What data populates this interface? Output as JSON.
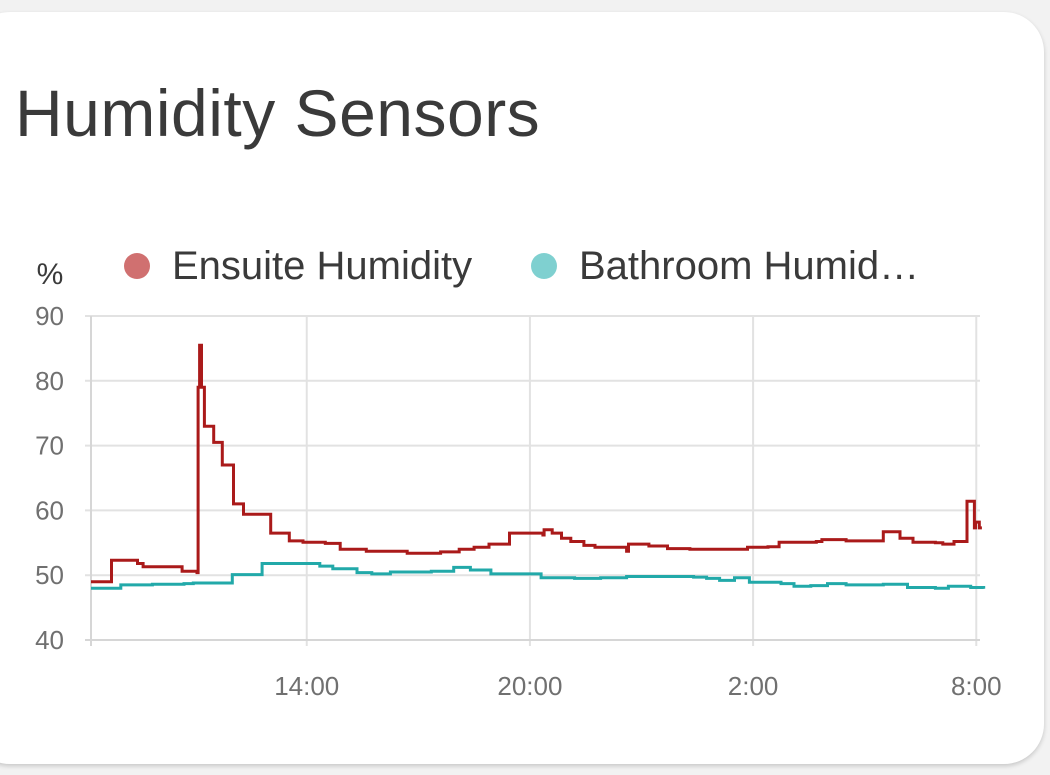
{
  "card": {
    "title": "Humidity Sensors"
  },
  "chart_data": {
    "type": "line",
    "title": "Humidity Sensors",
    "ylabel": "%",
    "ylim": [
      40,
      90
    ],
    "yticks": [
      "40",
      "50",
      "60",
      "70",
      "80",
      "90"
    ],
    "xlim": [
      8.2,
      32.1
    ],
    "xticks": [
      {
        "value": 14,
        "label": "14:00"
      },
      {
        "value": 20,
        "label": "20:00"
      },
      {
        "value": 26,
        "label": "2:00"
      },
      {
        "value": 32,
        "label": "8:00"
      }
    ],
    "grid": true,
    "legend_position": "top",
    "series": [
      {
        "name": "Ensuite Humidity",
        "legend_label": "Ensuite Humidity",
        "color": "#aa1a1a",
        "legend_color": "#d07070",
        "step": true,
        "points": [
          [
            8.2,
            49
          ],
          [
            8.75,
            52.3
          ],
          [
            9.45,
            51.8
          ],
          [
            9.6,
            51.3
          ],
          [
            10.65,
            50.6
          ],
          [
            11.05,
            50.4
          ],
          [
            11.08,
            79
          ],
          [
            11.12,
            85.5
          ],
          [
            11.17,
            79
          ],
          [
            11.25,
            73
          ],
          [
            11.5,
            70.5
          ],
          [
            11.73,
            67
          ],
          [
            12.03,
            61
          ],
          [
            12.3,
            59.4
          ],
          [
            13.03,
            56.5
          ],
          [
            13.53,
            55.3
          ],
          [
            13.9,
            55.1
          ],
          [
            14.5,
            54.9
          ],
          [
            14.9,
            54
          ],
          [
            15.6,
            53.7
          ],
          [
            16.7,
            53.4
          ],
          [
            17.6,
            53.6
          ],
          [
            18.1,
            54
          ],
          [
            18.5,
            54.3
          ],
          [
            18.9,
            54.8
          ],
          [
            19.45,
            56.5
          ],
          [
            20.35,
            56.2
          ],
          [
            20.38,
            57
          ],
          [
            20.6,
            56.5
          ],
          [
            20.85,
            55.7
          ],
          [
            21.1,
            55.2
          ],
          [
            21.45,
            54.6
          ],
          [
            21.75,
            54.3
          ],
          [
            22.6,
            53.7
          ],
          [
            22.65,
            54.8
          ],
          [
            23.2,
            54.5
          ],
          [
            23.7,
            54.1
          ],
          [
            24.3,
            54
          ],
          [
            25.55,
            54
          ],
          [
            25.85,
            54.3
          ],
          [
            26.4,
            54.4
          ],
          [
            26.7,
            55.1
          ],
          [
            27.7,
            55.2
          ],
          [
            27.85,
            55.5
          ],
          [
            28.5,
            55.3
          ],
          [
            29.5,
            56.7
          ],
          [
            29.95,
            55.7
          ],
          [
            30.3,
            55.1
          ],
          [
            30.9,
            55
          ],
          [
            31.1,
            54.8
          ],
          [
            31.4,
            55.2
          ],
          [
            31.75,
            61.4
          ],
          [
            31.95,
            57.3
          ],
          [
            31.98,
            58.2
          ],
          [
            32.08,
            57.3
          ],
          [
            32.15,
            57.3
          ]
        ]
      },
      {
        "name": "Bathroom Humid…",
        "legend_label": "Bathroom Humid…",
        "color": "#22a9a9",
        "legend_color": "#7fd0d0",
        "step": true,
        "points": [
          [
            8.2,
            48
          ],
          [
            9,
            48.5
          ],
          [
            9.85,
            48.6
          ],
          [
            10.7,
            48.7
          ],
          [
            10.95,
            48.8
          ],
          [
            12.0,
            50.1
          ],
          [
            12.8,
            51.8
          ],
          [
            13.95,
            51.8
          ],
          [
            14.35,
            51.4
          ],
          [
            14.7,
            51
          ],
          [
            15.35,
            50.4
          ],
          [
            15.75,
            50.2
          ],
          [
            16.25,
            50.5
          ],
          [
            17.35,
            50.6
          ],
          [
            17.95,
            51.2
          ],
          [
            18.4,
            50.8
          ],
          [
            18.95,
            50.2
          ],
          [
            19.3,
            50.2
          ],
          [
            20.0,
            50.2
          ],
          [
            20.3,
            49.6
          ],
          [
            21.2,
            49.5
          ],
          [
            21.9,
            49.6
          ],
          [
            22.6,
            49.8
          ],
          [
            23.9,
            49.8
          ],
          [
            24.4,
            49.7
          ],
          [
            24.75,
            49.5
          ],
          [
            25.1,
            49.2
          ],
          [
            25.5,
            49.6
          ],
          [
            25.9,
            48.9
          ],
          [
            26.35,
            48.9
          ],
          [
            26.75,
            48.7
          ],
          [
            27.1,
            48.3
          ],
          [
            27.55,
            48.4
          ],
          [
            28.0,
            48.7
          ],
          [
            28.5,
            48.5
          ],
          [
            29.5,
            48.6
          ],
          [
            30.15,
            48.1
          ],
          [
            30.9,
            48
          ],
          [
            31.25,
            48.3
          ],
          [
            31.85,
            48.1
          ],
          [
            32.2,
            47.9
          ]
        ]
      }
    ]
  }
}
